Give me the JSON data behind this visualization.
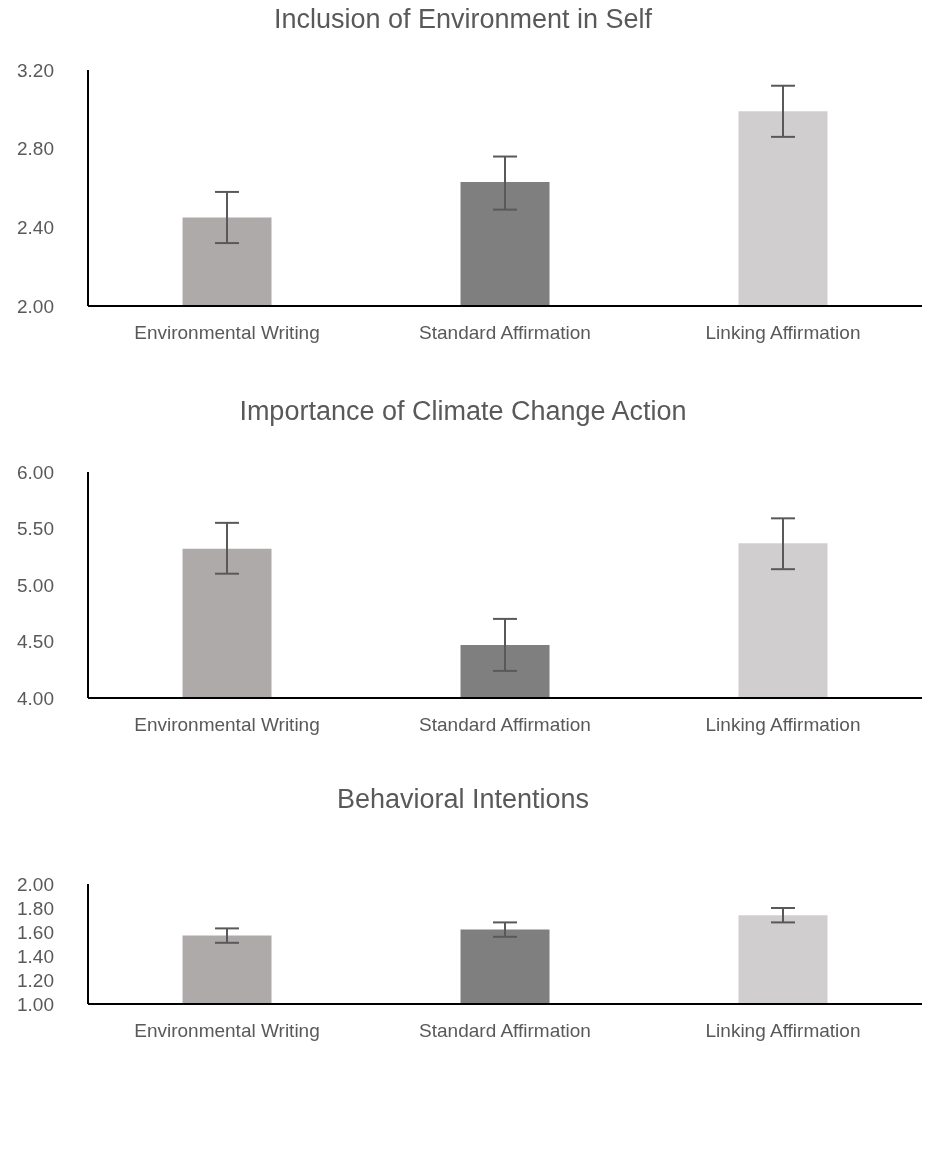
{
  "chart_data": [
    {
      "type": "bar",
      "title": "Inclusion of Environment in Self",
      "categories": [
        "Environmental Writing",
        "Standard Affirmation",
        "Linking Affirmation"
      ],
      "values": [
        2.45,
        2.63,
        2.99
      ],
      "colors": [
        "#aeaaaa",
        "#7f7f7f",
        "#d0cece"
      ],
      "errors": [
        [
          2.32,
          2.58
        ],
        [
          2.49,
          2.76
        ],
        [
          2.86,
          3.12
        ]
      ],
      "ylim": [
        2.0,
        3.2
      ],
      "yticks": [
        {
          "value": 2.0,
          "label": "2.00"
        },
        {
          "value": 2.4,
          "label": "2.40"
        },
        {
          "value": 2.8,
          "label": "2.80"
        },
        {
          "value": 3.2,
          "label": "3.20"
        }
      ],
      "grid": false,
      "legend": false
    },
    {
      "type": "bar",
      "title": "Importance of Climate Change Action",
      "categories": [
        "Environmental Writing",
        "Standard Affirmation",
        "Linking Affirmation"
      ],
      "values": [
        5.32,
        4.47,
        5.37
      ],
      "colors": [
        "#aeaaaa",
        "#7f7f7f",
        "#d0cece"
      ],
      "errors": [
        [
          5.1,
          5.55
        ],
        [
          4.24,
          4.7
        ],
        [
          5.14,
          5.59
        ]
      ],
      "ylim": [
        4.0,
        6.0
      ],
      "yticks": [
        {
          "value": 4.0,
          "label": "4.00"
        },
        {
          "value": 4.5,
          "label": "4.50"
        },
        {
          "value": 5.0,
          "label": "5.00"
        },
        {
          "value": 5.5,
          "label": "5.50"
        },
        {
          "value": 6.0,
          "label": "6.00"
        }
      ],
      "grid": false,
      "legend": false
    },
    {
      "type": "bar",
      "title": "Behavioral Intentions",
      "categories": [
        "Environmental Writing",
        "Standard Affirmation",
        "Linking Affirmation"
      ],
      "values": [
        1.57,
        1.62,
        1.74
      ],
      "colors": [
        "#aeaaaa",
        "#7f7f7f",
        "#d0cece"
      ],
      "errors": [
        [
          1.51,
          1.63
        ],
        [
          1.56,
          1.68
        ],
        [
          1.68,
          1.8
        ]
      ],
      "ylim": [
        1.0,
        2.0
      ],
      "yticks": [
        {
          "value": 1.0,
          "label": "1.00"
        },
        {
          "value": 1.2,
          "label": "1.20"
        },
        {
          "value": 1.4,
          "label": "1.40"
        },
        {
          "value": 1.6,
          "label": "1.60"
        },
        {
          "value": 1.8,
          "label": "1.80"
        },
        {
          "value": 2.0,
          "label": "2.00"
        }
      ],
      "grid": false,
      "legend": false
    }
  ]
}
